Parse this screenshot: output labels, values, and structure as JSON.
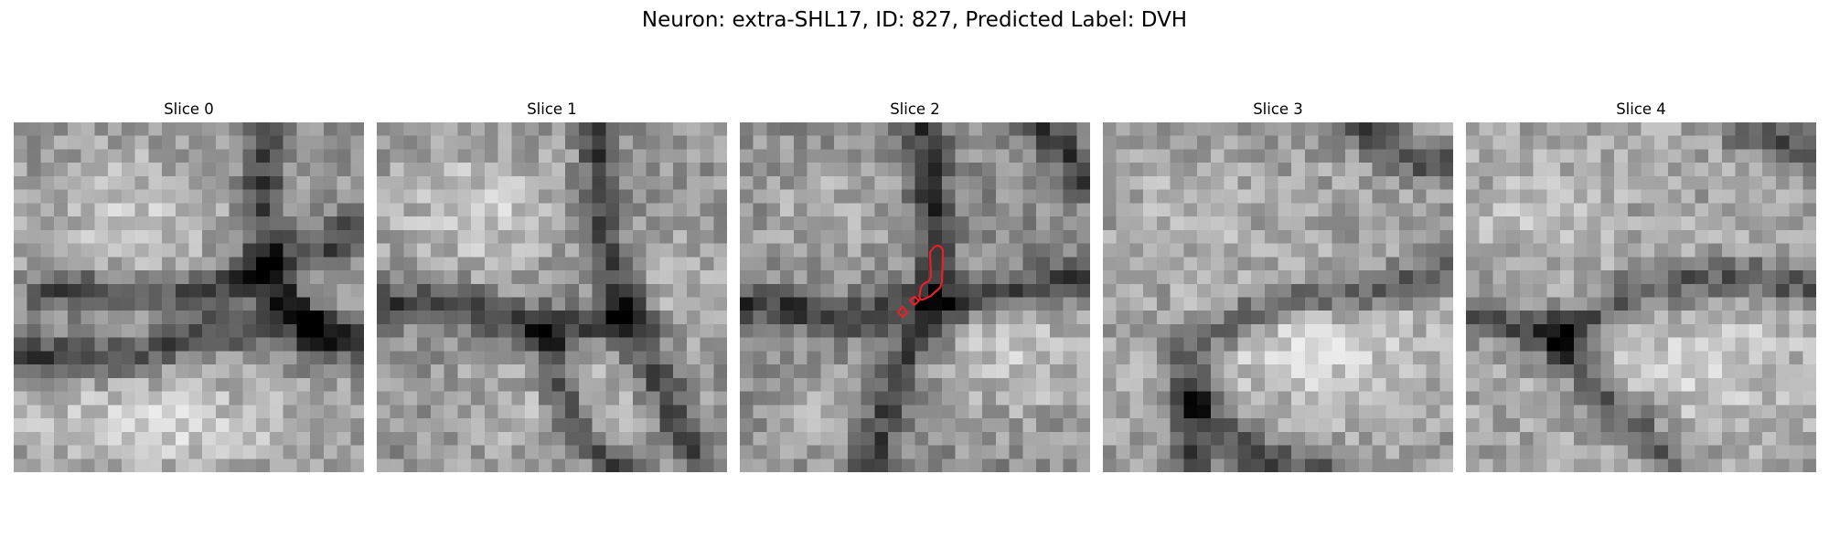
{
  "figure": {
    "title": "Neuron: extra-SHL17, ID: 827, Predicted Label: DVH"
  },
  "panels": [
    {
      "title": "Slice 0"
    },
    {
      "title": "Slice 1"
    },
    {
      "title": "Slice 2"
    },
    {
      "title": "Slice 3"
    },
    {
      "title": "Slice 4"
    }
  ],
  "image": {
    "colormap": "grayscale",
    "grid_cells": 26
  },
  "contour": {
    "slice": "Slice 2",
    "color": "#e8202a"
  }
}
